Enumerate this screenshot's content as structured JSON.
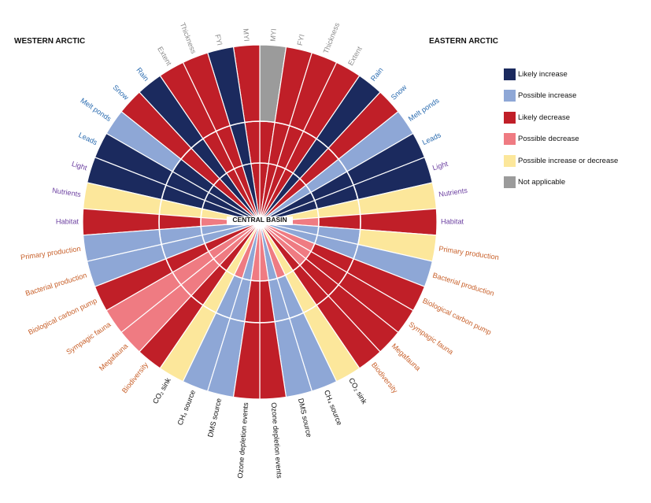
{
  "chart_data": {
    "type": "radial",
    "center_label": "CENTRAL BASIN",
    "regions": {
      "west": "WESTERN ARCTIC",
      "east": "EASTERN ARCTIC"
    },
    "legend": [
      {
        "key": "LI",
        "label": "Likely increase",
        "color": "#1b2a5e"
      },
      {
        "key": "PI",
        "label": "Possible increase",
        "color": "#8ea7d6"
      },
      {
        "key": "LD",
        "label": "Likely decrease",
        "color": "#c01f28"
      },
      {
        "key": "PD",
        "label": "Possible decrease",
        "color": "#ef7b82"
      },
      {
        "key": "PID",
        "label": "Possible increase or decrease",
        "color": "#fce79b"
      },
      {
        "key": "NA",
        "label": "Not applicable",
        "color": "#9b9b9b"
      }
    ],
    "west_sectors": [
      {
        "label": "MYI",
        "group": "ice",
        "outer": "LD",
        "middle": "LD",
        "inner": "LD"
      },
      {
        "label": "FYI",
        "group": "ice",
        "outer": "LI",
        "middle": "LI",
        "inner": "LI"
      },
      {
        "label": "Thickness",
        "group": "ice",
        "outer": "LD",
        "middle": "LD",
        "inner": "LD"
      },
      {
        "label": "Extent",
        "group": "ice",
        "outer": "LD",
        "middle": "LD",
        "inner": "LD"
      },
      {
        "label": "Rain",
        "group": "physical",
        "outer": "LI",
        "middle": "LI",
        "inner": "LI"
      },
      {
        "label": "Snow",
        "group": "physical",
        "outer": "LD",
        "middle": "LD",
        "inner": "LD"
      },
      {
        "label": "Melt ponds",
        "group": "physical",
        "outer": "PI",
        "middle": "LI",
        "inner": "LI"
      },
      {
        "label": "Leads",
        "group": "physical",
        "outer": "LI",
        "middle": "LI",
        "inner": "LI"
      },
      {
        "label": "Light",
        "group": "habitat",
        "outer": "LI",
        "middle": "LI",
        "inner": "LI"
      },
      {
        "label": "Nutrients",
        "group": "habitat",
        "outer": "PID",
        "middle": "PID",
        "inner": "PID"
      },
      {
        "label": "Habitat",
        "group": "habitat",
        "outer": "LD",
        "middle": "LD",
        "inner": "PD"
      },
      {
        "label": "Primary production",
        "group": "biology",
        "outer": "PI",
        "middle": "PI",
        "inner": "PI"
      },
      {
        "label": "Bacterial production",
        "group": "biology",
        "outer": "PI",
        "middle": "PI",
        "inner": "PI"
      },
      {
        "label": "Biological carbon pump",
        "group": "biology",
        "outer": "LD",
        "middle": "LD",
        "inner": "LD"
      },
      {
        "label": "Sympagic fauna",
        "group": "biology",
        "outer": "PD",
        "middle": "PD",
        "inner": "PD"
      },
      {
        "label": "Megafauna",
        "group": "biology",
        "outer": "PD",
        "middle": "PD",
        "inner": "PD"
      },
      {
        "label": "Biodiversity",
        "group": "biology",
        "outer": "LD",
        "middle": "LD",
        "inner": "LD"
      },
      {
        "label": "CO₂ sink",
        "group": "gas",
        "outer": "PID",
        "middle": "PID",
        "inner": "PID"
      },
      {
        "label": "CH₄ source",
        "group": "gas",
        "outer": "PI",
        "middle": "PI",
        "inner": "PD"
      },
      {
        "label": "DMS source",
        "group": "gas",
        "outer": "PI",
        "middle": "PI",
        "inner": "PI"
      },
      {
        "label": "Ozone depletion events",
        "group": "gas",
        "outer": "LD",
        "middle": "LD",
        "inner": "PD"
      }
    ],
    "east_sectors": [
      {
        "label": "MYI",
        "group": "ice",
        "outer": "NA",
        "middle": "LD",
        "inner": "LD"
      },
      {
        "label": "FYI",
        "group": "ice",
        "outer": "LD",
        "middle": "LD",
        "inner": "LD"
      },
      {
        "label": "Thickness",
        "group": "ice",
        "outer": "LD",
        "middle": "LD",
        "inner": "LD"
      },
      {
        "label": "Extent",
        "group": "ice",
        "outer": "LD",
        "middle": "LD",
        "inner": "LD"
      },
      {
        "label": "Rain",
        "group": "physical",
        "outer": "LI",
        "middle": "LI",
        "inner": "LI"
      },
      {
        "label": "Snow",
        "group": "physical",
        "outer": "LD",
        "middle": "LD",
        "inner": "LD"
      },
      {
        "label": "Melt ponds",
        "group": "physical",
        "outer": "PI",
        "middle": "PI",
        "inner": "PI"
      },
      {
        "label": "Leads",
        "group": "physical",
        "outer": "LI",
        "middle": "LI",
        "inner": "LI"
      },
      {
        "label": "Light",
        "group": "habitat",
        "outer": "LI",
        "middle": "LI",
        "inner": "LI"
      },
      {
        "label": "Nutrients",
        "group": "habitat",
        "outer": "PID",
        "middle": "PID",
        "inner": "PID"
      },
      {
        "label": "Habitat",
        "group": "habitat",
        "outer": "LD",
        "middle": "LD",
        "inner": "PD"
      },
      {
        "label": "Primary production",
        "group": "biology",
        "outer": "PID",
        "middle": "PI",
        "inner": "PI"
      },
      {
        "label": "Bacterial production",
        "group": "biology",
        "outer": "PI",
        "middle": "PI",
        "inner": "PI"
      },
      {
        "label": "Biological carbon pump",
        "group": "biology",
        "outer": "LD",
        "middle": "LD",
        "inner": "PD"
      },
      {
        "label": "Sympagic fauna",
        "group": "biology",
        "outer": "LD",
        "middle": "LD",
        "inner": "PD"
      },
      {
        "label": "Megafauna",
        "group": "biology",
        "outer": "LD",
        "middle": "LD",
        "inner": "PD"
      },
      {
        "label": "Biodiversity",
        "group": "biology",
        "outer": "LD",
        "middle": "LD",
        "inner": "LD"
      },
      {
        "label": "CO₂ sink",
        "group": "gas",
        "outer": "PID",
        "middle": "PID",
        "inner": "PID"
      },
      {
        "label": "CH₄ source",
        "group": "gas",
        "outer": "PI",
        "middle": "PI",
        "inner": "PD"
      },
      {
        "label": "DMS source",
        "group": "gas",
        "outer": "PI",
        "middle": "PI",
        "inner": "PI"
      },
      {
        "label": "Ozone depletion events",
        "group": "gas",
        "outer": "LD",
        "middle": "LD",
        "inner": "PD"
      }
    ],
    "label_colors": {
      "ice": "#8c8c8c",
      "physical": "#2b6cb0",
      "habitat": "#6b3fa0",
      "biology": "#c8602a",
      "gas": "#111111"
    }
  }
}
